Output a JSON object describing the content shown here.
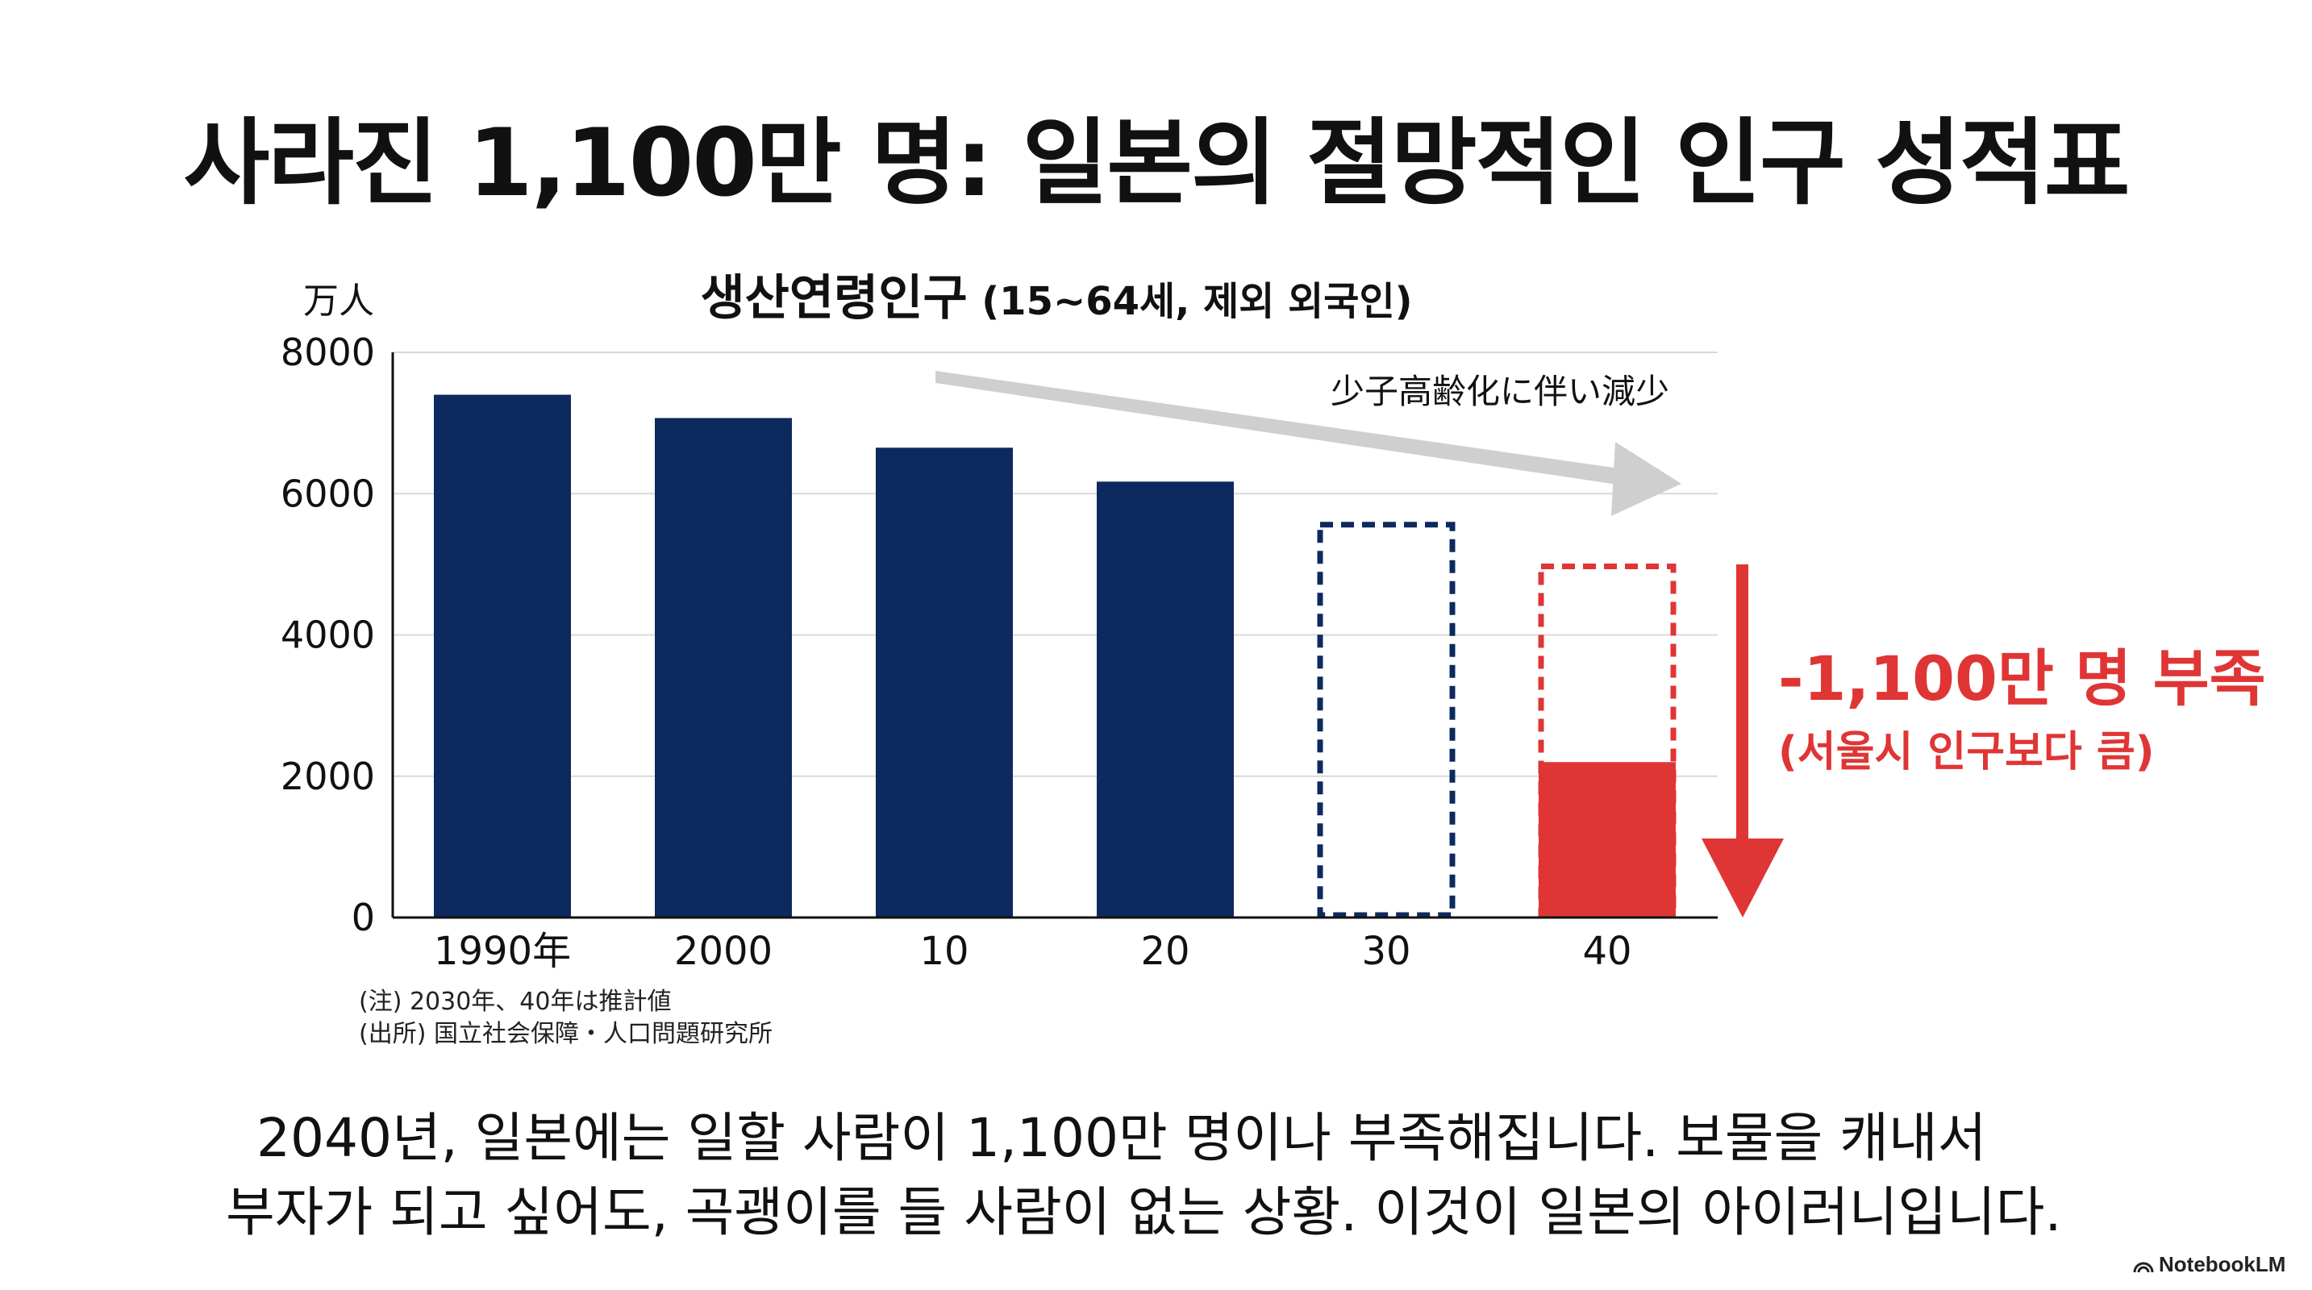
{
  "title": "사라진 1,100만 명: 일본의 절망적인 인구 성적표",
  "chart_data": {
    "type": "bar",
    "title": "생산연령인구",
    "subtitle": "(15~64세, 제외 외국인)",
    "ylabel": "万人",
    "ylim": [
      0,
      8000
    ],
    "yticks": [
      0,
      2000,
      4000,
      6000,
      8000
    ],
    "grid": true,
    "categories": [
      "1990年",
      "2000",
      "10",
      "20",
      "30",
      "40"
    ],
    "values": [
      7400,
      7070,
      6650,
      6170,
      5560,
      4970
    ],
    "projected": [
      false,
      false,
      false,
      false,
      true,
      true
    ],
    "filled_remaining": [
      null,
      null,
      null,
      null,
      null,
      2200
    ],
    "trend_annotation": "少子高齢化に伴い減少",
    "shortfall_label": "-1,100만 명 부족",
    "shortfall_sublabel": "(서울시 인구보다 큼)",
    "notes": [
      "(注) 2030年、40年は推計値",
      "(出所) 国立社会保障・人口問題研究所"
    ],
    "colors": {
      "actual": "#0d2a5e",
      "projected_outline": "#0d2a5e",
      "highlight": "#e03535",
      "trend_arrow": "#cfcfcf",
      "grid": "#d9d9d9"
    }
  },
  "caption": {
    "line1": "2040년, 일본에는 일할 사람이 1,100만 명이나 부족해집니다. 보물을 캐내서",
    "line2": "부자가 되고 싶어도, 곡괭이를 들 사람이 없는 상황. 이것이 일본의 아이러니입니다."
  },
  "brand": "NotebookLM"
}
